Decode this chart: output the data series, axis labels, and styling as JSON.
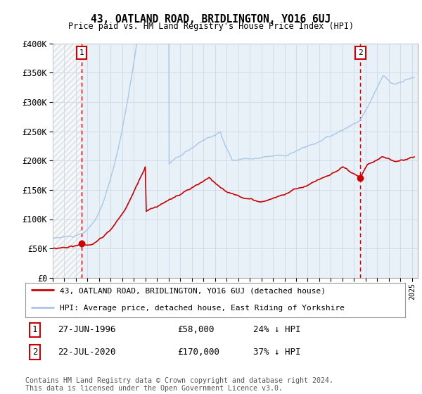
{
  "title": "43, OATLAND ROAD, BRIDLINGTON, YO16 6UJ",
  "subtitle": "Price paid vs. HM Land Registry's House Price Index (HPI)",
  "ylim": [
    0,
    400000
  ],
  "yticks": [
    0,
    50000,
    100000,
    150000,
    200000,
    250000,
    300000,
    350000,
    400000
  ],
  "ytick_labels": [
    "£0",
    "£50K",
    "£100K",
    "£150K",
    "£200K",
    "£250K",
    "£300K",
    "£350K",
    "£400K"
  ],
  "xlim_start": 1994.0,
  "xlim_end": 2025.5,
  "hpi_color": "#a8c8e8",
  "price_color": "#cc0000",
  "dashed_color": "#cc0000",
  "marker1_date": 1996.49,
  "marker1_price": 58000,
  "marker1_label": "1",
  "marker2_date": 2020.55,
  "marker2_price": 170000,
  "marker2_label": "2",
  "legend_line1": "43, OATLAND ROAD, BRIDLINGTON, YO16 6UJ (detached house)",
  "legend_line2": "HPI: Average price, detached house, East Riding of Yorkshire",
  "table_row1": [
    "1",
    "27-JUN-1996",
    "£58,000",
    "24% ↓ HPI"
  ],
  "table_row2": [
    "2",
    "22-JUL-2020",
    "£170,000",
    "37% ↓ HPI"
  ],
  "footnote": "Contains HM Land Registry data © Crown copyright and database right 2024.\nThis data is licensed under the Open Government Licence v3.0.",
  "grid_color": "#d0d8e4",
  "plot_bg": "#e8f0f8",
  "hatch_color": "#c8c8c8"
}
